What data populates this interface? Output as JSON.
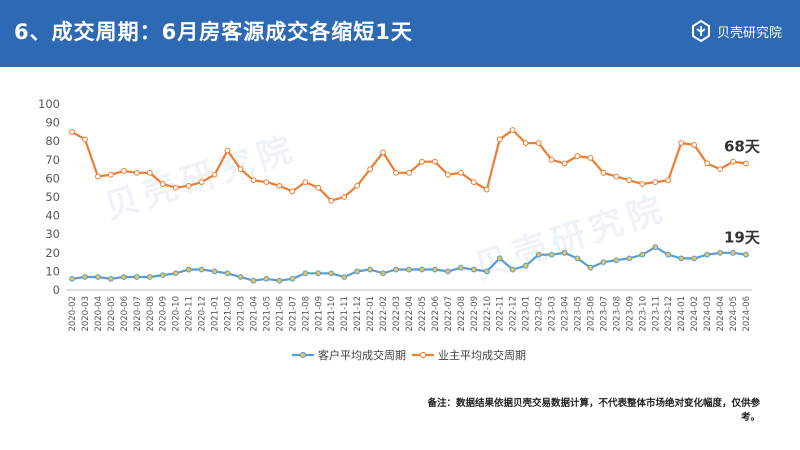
{
  "header": {
    "title": "6、成交周期：6月房客源成交各缩短1天",
    "logo_text": "贝壳研究院",
    "bg_color": "#2e6ab4"
  },
  "watermark_text": "贝壳研究院",
  "note": "备注：数据结果依据贝壳交易数据计算，不代表整体市场绝对变化幅度，仅供参考。",
  "chart_data": {
    "type": "line",
    "title": "",
    "xlabel": "",
    "ylabel": "",
    "ylim": [
      0,
      100
    ],
    "yticks": [
      0,
      10,
      20,
      30,
      40,
      50,
      60,
      70,
      80,
      90,
      100
    ],
    "grid": false,
    "legend_position": "bottom",
    "categories": [
      "2020-02",
      "2020-03",
      "2020-04",
      "2020-05",
      "2020-06",
      "2020-07",
      "2020-08",
      "2020-09",
      "2020-10",
      "2020-11",
      "2020-12",
      "2021-01",
      "2021-02",
      "2021-03",
      "2021-04",
      "2021-05",
      "2021-06",
      "2021-07",
      "2021-08",
      "2021-09",
      "2021-10",
      "2021-11",
      "2021-12",
      "2022-01",
      "2022-02",
      "2022-03",
      "2022-04",
      "2022-05",
      "2022-06",
      "2022-07",
      "2022-08",
      "2022-09",
      "2022-10",
      "2022-11",
      "2022-12",
      "2023-01",
      "2023-02",
      "2023-03",
      "2023-04",
      "2023-05",
      "2023-06",
      "2023-07",
      "2023-08",
      "2023-09",
      "2023-10",
      "2023-11",
      "2023-12",
      "2024-01",
      "2024-02",
      "2024-03",
      "2024-04",
      "2024-05",
      "2024-06"
    ],
    "series": [
      {
        "name": "客户平均成交周期",
        "color": "#5b9bd5",
        "marker_fill": "#e8c84a",
        "end_label": "19天",
        "values": [
          6,
          7,
          7,
          6,
          7,
          7,
          7,
          8,
          9,
          11,
          11,
          10,
          9,
          7,
          5,
          6,
          5,
          6,
          9,
          9,
          9,
          7,
          10,
          11,
          9,
          11,
          11,
          11,
          11,
          10,
          12,
          11,
          10,
          17,
          11,
          13,
          19,
          19,
          20,
          17,
          12,
          15,
          16,
          17,
          19,
          23,
          19,
          17,
          17,
          19,
          20,
          20,
          19
        ]
      },
      {
        "name": "业主平均成交周期",
        "color": "#ed7d31",
        "marker_fill": "#ffffff",
        "end_label": "68天",
        "values": [
          85,
          81,
          61,
          62,
          64,
          63,
          63,
          57,
          55,
          56,
          58,
          62,
          75,
          65,
          59,
          58,
          56,
          53,
          58,
          55,
          48,
          50,
          56,
          65,
          74,
          63,
          63,
          69,
          69,
          62,
          63,
          58,
          54,
          81,
          86,
          79,
          79,
          70,
          68,
          72,
          71,
          63,
          61,
          59,
          57,
          58,
          59,
          79,
          78,
          68,
          65,
          69,
          68
        ]
      }
    ]
  }
}
